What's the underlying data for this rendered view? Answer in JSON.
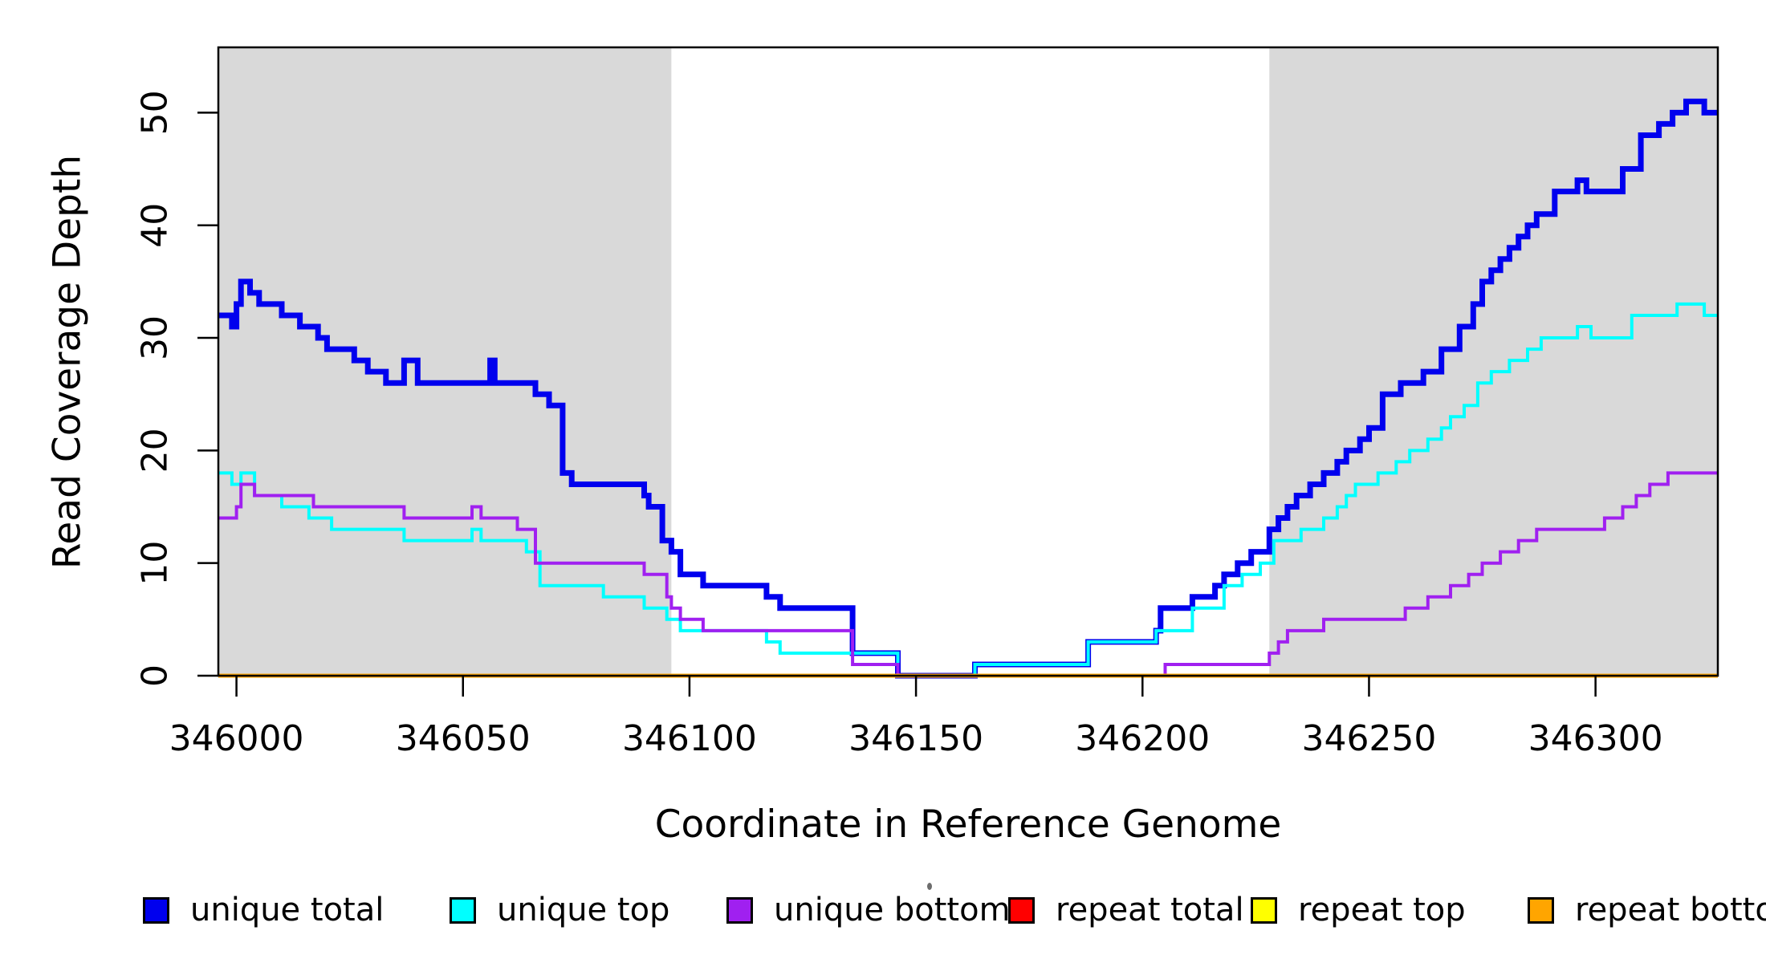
{
  "figure": {
    "background": "#FFFFFF",
    "plot_background_shaded": "#D9D9D9"
  },
  "chart_data": {
    "type": "line",
    "subtype": "step-post",
    "title": "",
    "xlabel": "Coordinate in Reference Genome",
    "ylabel": "Read Coverage Depth",
    "xlim": [
      345996,
      346327
    ],
    "ylim": [
      0,
      55.8
    ],
    "x_ticks": [
      346000,
      346050,
      346100,
      346150,
      346200,
      346250,
      346300
    ],
    "y_ticks": [
      0,
      10,
      20,
      30,
      40,
      50
    ],
    "grid": false,
    "legend_position": "bottom",
    "shaded_regions": [
      {
        "x0": 345996,
        "x1": 346096,
        "color": "#D9D9D9"
      },
      {
        "x0": 346228,
        "x1": 346327,
        "color": "#D9D9D9"
      }
    ],
    "series": [
      {
        "name": "unique total",
        "color": "#0000EE",
        "width": 7,
        "points": [
          [
            345996,
            32
          ],
          [
            345999,
            31
          ],
          [
            346000,
            33
          ],
          [
            346001,
            35
          ],
          [
            346003,
            34
          ],
          [
            346005,
            33
          ],
          [
            346010,
            32
          ],
          [
            346014,
            31
          ],
          [
            346018,
            30
          ],
          [
            346020,
            29
          ],
          [
            346026,
            28
          ],
          [
            346029,
            27
          ],
          [
            346033,
            26
          ],
          [
            346037,
            28
          ],
          [
            346040,
            26
          ],
          [
            346056,
            28
          ],
          [
            346057,
            26
          ],
          [
            346066,
            25
          ],
          [
            346069,
            24
          ],
          [
            346072,
            18
          ],
          [
            346074,
            17
          ],
          [
            346090,
            16
          ],
          [
            346091,
            15
          ],
          [
            346094,
            12
          ],
          [
            346096,
            11
          ],
          [
            346098,
            9
          ],
          [
            346103,
            8
          ],
          [
            346117,
            7
          ],
          [
            346120,
            6
          ],
          [
            346136,
            2
          ],
          [
            346146,
            0
          ],
          [
            346163,
            1
          ],
          [
            346188,
            3
          ],
          [
            346203,
            4
          ],
          [
            346204,
            6
          ],
          [
            346211,
            7
          ],
          [
            346216,
            8
          ],
          [
            346218,
            9
          ],
          [
            346221,
            10
          ],
          [
            346224,
            11
          ],
          [
            346228,
            13
          ],
          [
            346230,
            14
          ],
          [
            346232,
            15
          ],
          [
            346234,
            16
          ],
          [
            346237,
            17
          ],
          [
            346240,
            18
          ],
          [
            346243,
            19
          ],
          [
            346245,
            20
          ],
          [
            346248,
            21
          ],
          [
            346250,
            22
          ],
          [
            346253,
            25
          ],
          [
            346257,
            26
          ],
          [
            346262,
            27
          ],
          [
            346266,
            29
          ],
          [
            346270,
            31
          ],
          [
            346273,
            33
          ],
          [
            346275,
            35
          ],
          [
            346277,
            36
          ],
          [
            346279,
            37
          ],
          [
            346281,
            38
          ],
          [
            346283,
            39
          ],
          [
            346285,
            40
          ],
          [
            346287,
            41
          ],
          [
            346291,
            43
          ],
          [
            346296,
            44
          ],
          [
            346298,
            43
          ],
          [
            346306,
            45
          ],
          [
            346310,
            48
          ],
          [
            346314,
            49
          ],
          [
            346317,
            50
          ],
          [
            346320,
            51
          ],
          [
            346324,
            50
          ]
        ]
      },
      {
        "name": "unique top",
        "color": "#00FFFF",
        "width": 4,
        "points": [
          [
            345996,
            18
          ],
          [
            345999,
            17
          ],
          [
            346001,
            18
          ],
          [
            346004,
            16
          ],
          [
            346010,
            15
          ],
          [
            346016,
            14
          ],
          [
            346021,
            13
          ],
          [
            346037,
            12
          ],
          [
            346052,
            13
          ],
          [
            346054,
            12
          ],
          [
            346064,
            11
          ],
          [
            346067,
            8
          ],
          [
            346081,
            7
          ],
          [
            346090,
            6
          ],
          [
            346095,
            5
          ],
          [
            346098,
            4
          ],
          [
            346117,
            3
          ],
          [
            346120,
            2
          ],
          [
            346146,
            0
          ],
          [
            346163,
            1
          ],
          [
            346188,
            3
          ],
          [
            346203,
            4
          ],
          [
            346211,
            6
          ],
          [
            346218,
            8
          ],
          [
            346222,
            9
          ],
          [
            346226,
            10
          ],
          [
            346229,
            12
          ],
          [
            346235,
            13
          ],
          [
            346240,
            14
          ],
          [
            346243,
            15
          ],
          [
            346245,
            16
          ],
          [
            346247,
            17
          ],
          [
            346252,
            18
          ],
          [
            346256,
            19
          ],
          [
            346259,
            20
          ],
          [
            346263,
            21
          ],
          [
            346266,
            22
          ],
          [
            346268,
            23
          ],
          [
            346271,
            24
          ],
          [
            346274,
            26
          ],
          [
            346277,
            27
          ],
          [
            346281,
            28
          ],
          [
            346285,
            29
          ],
          [
            346288,
            30
          ],
          [
            346296,
            31
          ],
          [
            346299,
            30
          ],
          [
            346308,
            32
          ],
          [
            346318,
            33
          ],
          [
            346324,
            32
          ]
        ]
      },
      {
        "name": "unique bottom",
        "color": "#A020F0",
        "width": 4,
        "points": [
          [
            345996,
            14
          ],
          [
            346000,
            15
          ],
          [
            346001,
            17
          ],
          [
            346004,
            16
          ],
          [
            346017,
            15
          ],
          [
            346037,
            14
          ],
          [
            346052,
            15
          ],
          [
            346054,
            14
          ],
          [
            346062,
            13
          ],
          [
            346066,
            10
          ],
          [
            346090,
            9
          ],
          [
            346095,
            7
          ],
          [
            346096,
            6
          ],
          [
            346098,
            5
          ],
          [
            346103,
            4
          ],
          [
            346136,
            1
          ],
          [
            346146,
            0
          ],
          [
            346205,
            1
          ],
          [
            346228,
            2
          ],
          [
            346230,
            3
          ],
          [
            346232,
            4
          ],
          [
            346240,
            5
          ],
          [
            346258,
            6
          ],
          [
            346263,
            7
          ],
          [
            346268,
            8
          ],
          [
            346272,
            9
          ],
          [
            346275,
            10
          ],
          [
            346279,
            11
          ],
          [
            346283,
            12
          ],
          [
            346287,
            13
          ],
          [
            346302,
            14
          ],
          [
            346306,
            15
          ],
          [
            346309,
            16
          ],
          [
            346312,
            17
          ],
          [
            346316,
            18
          ]
        ]
      },
      {
        "name": "repeat total",
        "color": "#FF0000",
        "width": 4,
        "points": [
          [
            345996,
            0
          ]
        ]
      },
      {
        "name": "repeat top",
        "color": "#FFFF00",
        "width": 4,
        "points": [
          [
            345996,
            0
          ]
        ]
      },
      {
        "name": "repeat bottom",
        "color": "#FFA500",
        "width": 5,
        "points": [
          [
            345996,
            0
          ]
        ]
      }
    ]
  },
  "legend": {
    "items": [
      {
        "label": "unique total",
        "color": "#0000EE"
      },
      {
        "label": "unique top",
        "color": "#00FFFF"
      },
      {
        "label": "unique bottom",
        "color": "#A020F0"
      },
      {
        "label": "repeat total",
        "color": "#FF0000"
      },
      {
        "label": "repeat top",
        "color": "#FFFF00"
      },
      {
        "label": "repeat bottom",
        "color": "#FFA500"
      }
    ]
  }
}
